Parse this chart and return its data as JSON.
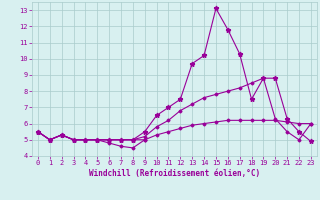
{
  "x": [
    0,
    1,
    2,
    3,
    4,
    5,
    6,
    7,
    8,
    9,
    10,
    11,
    12,
    13,
    14,
    15,
    16,
    17,
    18,
    19,
    20,
    21,
    22,
    23
  ],
  "line1": [
    5.5,
    5.0,
    5.3,
    5.0,
    5.0,
    5.0,
    4.8,
    4.6,
    4.5,
    5.0,
    null,
    null,
    null,
    null,
    null,
    null,
    null,
    null,
    null,
    null,
    null,
    null,
    null,
    null
  ],
  "line2": [
    5.5,
    5.0,
    5.3,
    5.0,
    5.0,
    5.0,
    5.0,
    5.0,
    5.0,
    5.0,
    5.3,
    5.5,
    5.7,
    5.9,
    6.0,
    6.1,
    6.2,
    6.2,
    6.2,
    6.2,
    6.2,
    6.1,
    6.0,
    6.0
  ],
  "line3": [
    5.5,
    5.0,
    5.3,
    5.0,
    5.0,
    5.0,
    5.0,
    5.0,
    5.0,
    5.2,
    5.8,
    6.2,
    6.8,
    7.2,
    7.6,
    7.8,
    8.0,
    8.2,
    8.5,
    8.8,
    6.3,
    5.5,
    5.0,
    6.0
  ],
  "line4": [
    5.5,
    5.0,
    5.3,
    5.0,
    5.0,
    5.0,
    5.0,
    5.0,
    5.0,
    5.5,
    6.5,
    7.0,
    7.5,
    9.7,
    10.2,
    13.1,
    11.8,
    10.3,
    7.5,
    8.8,
    8.8,
    6.3,
    5.5,
    4.9
  ],
  "line_color": "#990099",
  "bg_color": "#d8f0f0",
  "grid_color": "#aacccc",
  "xlabel": "Windchill (Refroidissement éolien,°C)",
  "ylim": [
    4,
    13.5
  ],
  "xlim": [
    -0.5,
    23.5
  ],
  "yticks": [
    4,
    5,
    6,
    7,
    8,
    9,
    10,
    11,
    12,
    13
  ],
  "xticks": [
    0,
    1,
    2,
    3,
    4,
    5,
    6,
    7,
    8,
    9,
    10,
    11,
    12,
    13,
    14,
    15,
    16,
    17,
    18,
    19,
    20,
    21,
    22,
    23
  ]
}
